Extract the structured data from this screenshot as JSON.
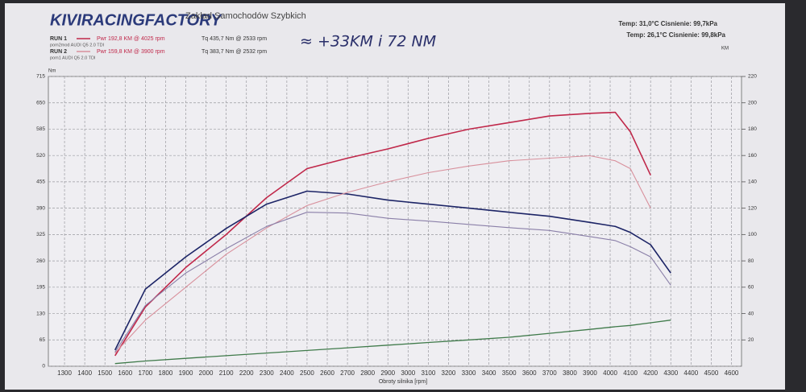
{
  "chart_data": {
    "type": "line",
    "brand": "KIVIRACINGFACTORY",
    "brand_subtitle": "Zakład Samochodów Szybkich",
    "runs": [
      {
        "label": "RUN 1",
        "power": "Pwr 192,8 KM @ 4025 rpm",
        "torque": "Tq 435,7 Nm @ 2533 rpm",
        "file": "pom2mod AUDI Q5 2.0 TDI",
        "conditions": "Temp: 31,0°C  Cisnienie: 99,7kPa"
      },
      {
        "label": "RUN 2",
        "power": "Pwr 159,8 KM @ 3900 rpm",
        "torque": "Tq 383,7 Nm @ 2532 rpm",
        "file": "pom1 AUDI Q5 2.0 TDI",
        "conditions": "Temp: 26,1°C  Cisnienie: 99,8kPa"
      }
    ],
    "annotation": "≈ +33KM i 72 NM",
    "ylabel": "Nm",
    "y2label": "KM",
    "xlabel": "Obroty silnika [rpm]",
    "x": [
      1550,
      1700,
      1900,
      2100,
      2300,
      2500,
      2700,
      2900,
      3100,
      3300,
      3500,
      3700,
      3900,
      4025,
      4100,
      4200,
      4300
    ],
    "series": [
      {
        "color": "#c0284a",
        "axis": "y2",
        "width": 1.6,
        "values": [
          8,
          45,
          75,
          100,
          128,
          150,
          158,
          165,
          173,
          180,
          185,
          190,
          192,
          192.8,
          178,
          145,
          null
        ]
      },
      {
        "color": "#1c2466",
        "axis": "y",
        "width": 1.6,
        "values": [
          40,
          190,
          270,
          340,
          400,
          432,
          425,
          410,
          400,
          390,
          380,
          370,
          355,
          345,
          330,
          300,
          230
        ]
      },
      {
        "color": "#d8909c",
        "axis": "y2",
        "width": 1.1,
        "values": [
          10,
          35,
          60,
          85,
          105,
          122,
          132,
          140,
          147,
          152,
          156,
          158,
          159.8,
          156,
          150,
          120,
          null
        ]
      },
      {
        "color": "#8a7fa8",
        "axis": "y",
        "width": 1.1,
        "values": [
          35,
          150,
          230,
          290,
          345,
          380,
          378,
          365,
          358,
          350,
          342,
          335,
          320,
          310,
          295,
          270,
          200
        ]
      },
      {
        "color": "#3f7a4a",
        "axis": "y2",
        "width": 1.3,
        "values": [
          2,
          4,
          6,
          8,
          10,
          12,
          14,
          16,
          18,
          20,
          22,
          25,
          28,
          30,
          31,
          33,
          35
        ]
      }
    ],
    "xlim": [
      1220,
      4650
    ],
    "xticks": [
      1300,
      1400,
      1500,
      1600,
      1700,
      1800,
      1900,
      2000,
      2100,
      2200,
      2300,
      2400,
      2500,
      2600,
      2700,
      2800,
      2900,
      3000,
      3100,
      3200,
      3300,
      3400,
      3500,
      3600,
      3700,
      3800,
      3900,
      4000,
      4100,
      4200,
      4300,
      4400,
      4500,
      4600
    ],
    "ylim": [
      0,
      715
    ],
    "yticks": [
      0,
      65,
      130,
      195,
      260,
      325,
      390,
      455,
      520,
      585,
      650,
      715
    ],
    "y2lim": [
      0,
      220
    ],
    "y2ticks": [
      20,
      40,
      60,
      80,
      100,
      120,
      140,
      160,
      180,
      200,
      220
    ],
    "grid": true
  }
}
